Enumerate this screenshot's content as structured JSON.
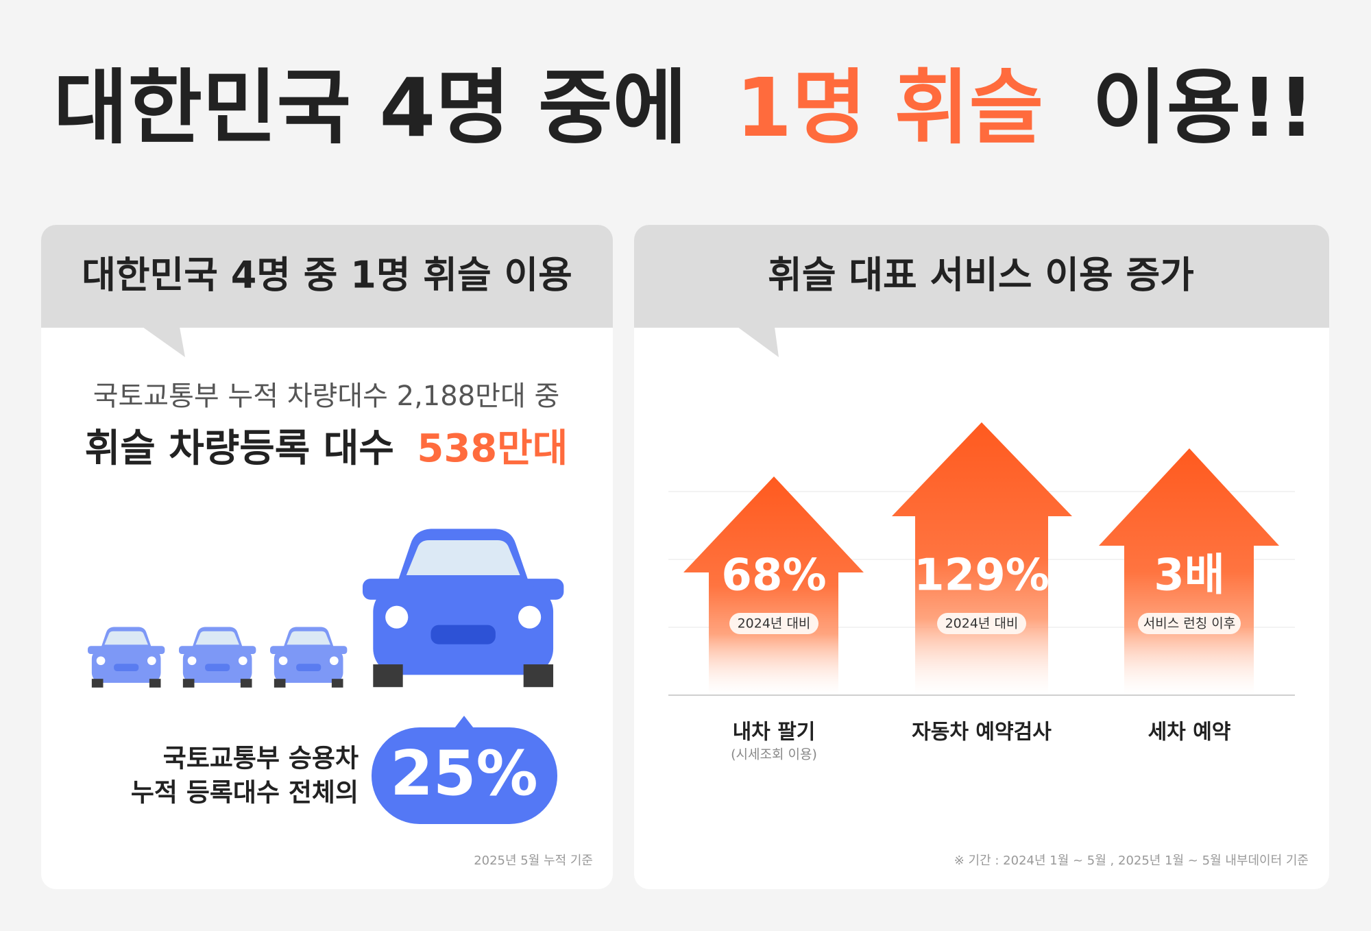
{
  "title": {
    "lead": "대한민국 4명 중에",
    "highlight": "1명 휘슬",
    "tail": "이용!!"
  },
  "left_panel": {
    "header": "대한민국 4명 중 1명 휘슬 이용",
    "line1": "국토교통부 누적 차량대수 2,188만대 중",
    "line2": {
      "text": "휘슬 차량등록 대수",
      "highlight": "538만대"
    },
    "caption": [
      "국토교통부 승용차",
      "누적 등록대수 전체의"
    ],
    "badge": "25%",
    "footnote": "2025년 5월 누적 기준"
  },
  "right_panel": {
    "header": "휘슬 대표 서비스 이용 증가",
    "items": [
      {
        "value": "68%",
        "note": "2024년 대비",
        "label": "내차 팔기",
        "sublabel": "(시세조회 이용)"
      },
      {
        "value": "129%",
        "note": "2024년 대비",
        "label": "자동차 예약검사"
      },
      {
        "value": "3배",
        "note": "서비스 런칭 이후",
        "label": "세차 예약"
      }
    ],
    "footnote": "※ 기간 : 2024년 1월 ~ 5월 , 2025년 1월 ~ 5월 내부데이터 기준"
  }
}
